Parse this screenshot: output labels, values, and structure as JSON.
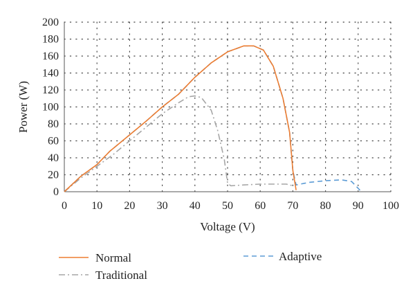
{
  "chart_data": {
    "type": "line",
    "xlabel": "Voltage (V)",
    "ylabel": "Power (W)",
    "xlim": [
      0,
      100
    ],
    "ylim": [
      0,
      200
    ],
    "xticks": [
      0,
      10,
      20,
      30,
      40,
      50,
      60,
      70,
      80,
      90,
      100
    ],
    "yticks": [
      0,
      20,
      40,
      60,
      80,
      100,
      120,
      140,
      160,
      180,
      200
    ],
    "grid": "dotted horizontal and vertical",
    "legend_position": "bottom",
    "series": [
      {
        "name": "Normal",
        "color": "#ed7d31",
        "style": "solid",
        "points": [
          [
            0,
            0
          ],
          [
            5,
            18
          ],
          [
            10,
            32
          ],
          [
            14,
            48
          ],
          [
            20,
            67
          ],
          [
            25,
            83
          ],
          [
            30,
            100
          ],
          [
            35,
            115
          ],
          [
            40,
            135
          ],
          [
            45,
            152
          ],
          [
            50,
            165
          ],
          [
            55,
            172
          ],
          [
            58,
            172
          ],
          [
            61,
            167
          ],
          [
            64,
            148
          ],
          [
            67,
            110
          ],
          [
            69,
            70
          ],
          [
            70,
            25
          ],
          [
            71,
            2
          ]
        ]
      },
      {
        "name": "Traditional",
        "color": "#a6a6a6",
        "style": "dashdot",
        "points": [
          [
            0,
            0
          ],
          [
            5,
            16
          ],
          [
            10,
            30
          ],
          [
            15,
            44
          ],
          [
            20,
            60
          ],
          [
            25,
            76
          ],
          [
            30,
            92
          ],
          [
            35,
            105
          ],
          [
            38,
            112
          ],
          [
            40,
            113
          ],
          [
            42,
            111
          ],
          [
            45,
            96
          ],
          [
            47,
            72
          ],
          [
            49,
            38
          ],
          [
            50,
            10
          ],
          [
            51,
            7
          ],
          [
            55,
            8
          ],
          [
            60,
            9
          ],
          [
            65,
            9
          ],
          [
            68,
            9
          ],
          [
            70,
            7
          ]
        ]
      },
      {
        "name": "Adaptive",
        "color": "#5b9bd5",
        "style": "dashed",
        "points": [
          [
            0,
            0
          ],
          [
            5,
            18
          ],
          [
            10,
            32
          ],
          [
            14,
            48
          ],
          [
            20,
            67
          ],
          [
            25,
            83
          ],
          [
            30,
            100
          ],
          [
            35,
            115
          ],
          [
            40,
            135
          ],
          [
            45,
            152
          ],
          [
            50,
            165
          ],
          [
            55,
            172
          ],
          [
            58,
            172
          ],
          [
            61,
            167
          ],
          [
            64,
            148
          ],
          [
            67,
            110
          ],
          [
            69,
            70
          ],
          [
            70,
            25
          ],
          [
            71,
            8
          ],
          [
            75,
            11
          ],
          [
            80,
            13
          ],
          [
            85,
            14
          ],
          [
            88,
            12
          ],
          [
            90,
            4
          ],
          [
            91,
            0
          ]
        ]
      }
    ]
  }
}
